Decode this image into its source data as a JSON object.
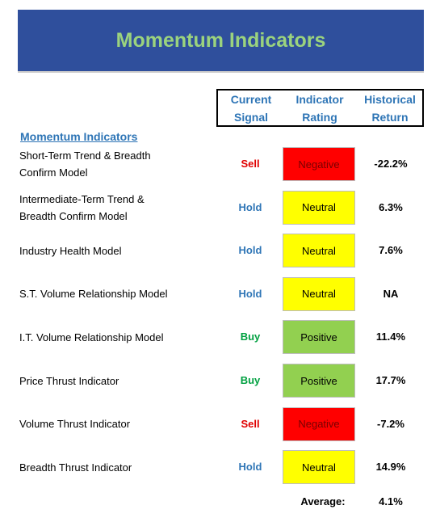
{
  "header": {
    "title": "Momentum Indicators"
  },
  "table": {
    "columns": [
      [
        "Current",
        "Signal"
      ],
      [
        "Indicator",
        "Rating"
      ],
      [
        "Historical",
        "Return"
      ]
    ],
    "section": "Momentum Indicators",
    "rows": [
      {
        "name": [
          "Short-Term Trend & Breadth",
          "Confirm Model"
        ],
        "signal": "Sell",
        "signal_color": "#e00000",
        "rating": "Negative",
        "rating_fill": "#ff0000",
        "rating_color": "#7a0000",
        "return": "-22.2%"
      },
      {
        "name": [
          "Intermediate-Term Trend &",
          "Breadth Confirm Model"
        ],
        "signal": "Hold",
        "signal_color": "#2e75b6",
        "rating": "Neutral",
        "rating_fill": "#ffff00",
        "rating_color": "#000000",
        "return": "6.3%"
      },
      {
        "name": [
          "Industry Health Model"
        ],
        "signal": "Hold",
        "signal_color": "#2e75b6",
        "rating": "Neutral",
        "rating_fill": "#ffff00",
        "rating_color": "#000000",
        "return": "7.6%"
      },
      {
        "name": [
          "S.T. Volume Relationship Model"
        ],
        "signal": "Hold",
        "signal_color": "#2e75b6",
        "rating": "Neutral",
        "rating_fill": "#ffff00",
        "rating_color": "#000000",
        "return": "NA"
      },
      {
        "name": [
          "I.T. Volume Relationship Model"
        ],
        "signal": "Buy",
        "signal_color": "#00a040",
        "rating": "Positive",
        "rating_fill": "#92d050",
        "rating_color": "#000000",
        "return": "11.4%"
      },
      {
        "name": [
          "Price Thrust Indicator"
        ],
        "signal": "Buy",
        "signal_color": "#00a040",
        "rating": "Positive",
        "rating_fill": "#92d050",
        "rating_color": "#000000",
        "return": "17.7%"
      },
      {
        "name": [
          "Volume Thrust Indicator"
        ],
        "signal": "Sell",
        "signal_color": "#e00000",
        "rating": "Negative",
        "rating_fill": "#ff0000",
        "rating_color": "#7a0000",
        "return": "-7.2%"
      },
      {
        "name": [
          "Breadth Thrust Indicator"
        ],
        "signal": "Hold",
        "signal_color": "#2e75b6",
        "rating": "Neutral",
        "rating_fill": "#ffff00",
        "rating_color": "#000000",
        "return": "14.9%"
      }
    ],
    "average": {
      "label": "Average:",
      "value": "4.1%"
    }
  }
}
